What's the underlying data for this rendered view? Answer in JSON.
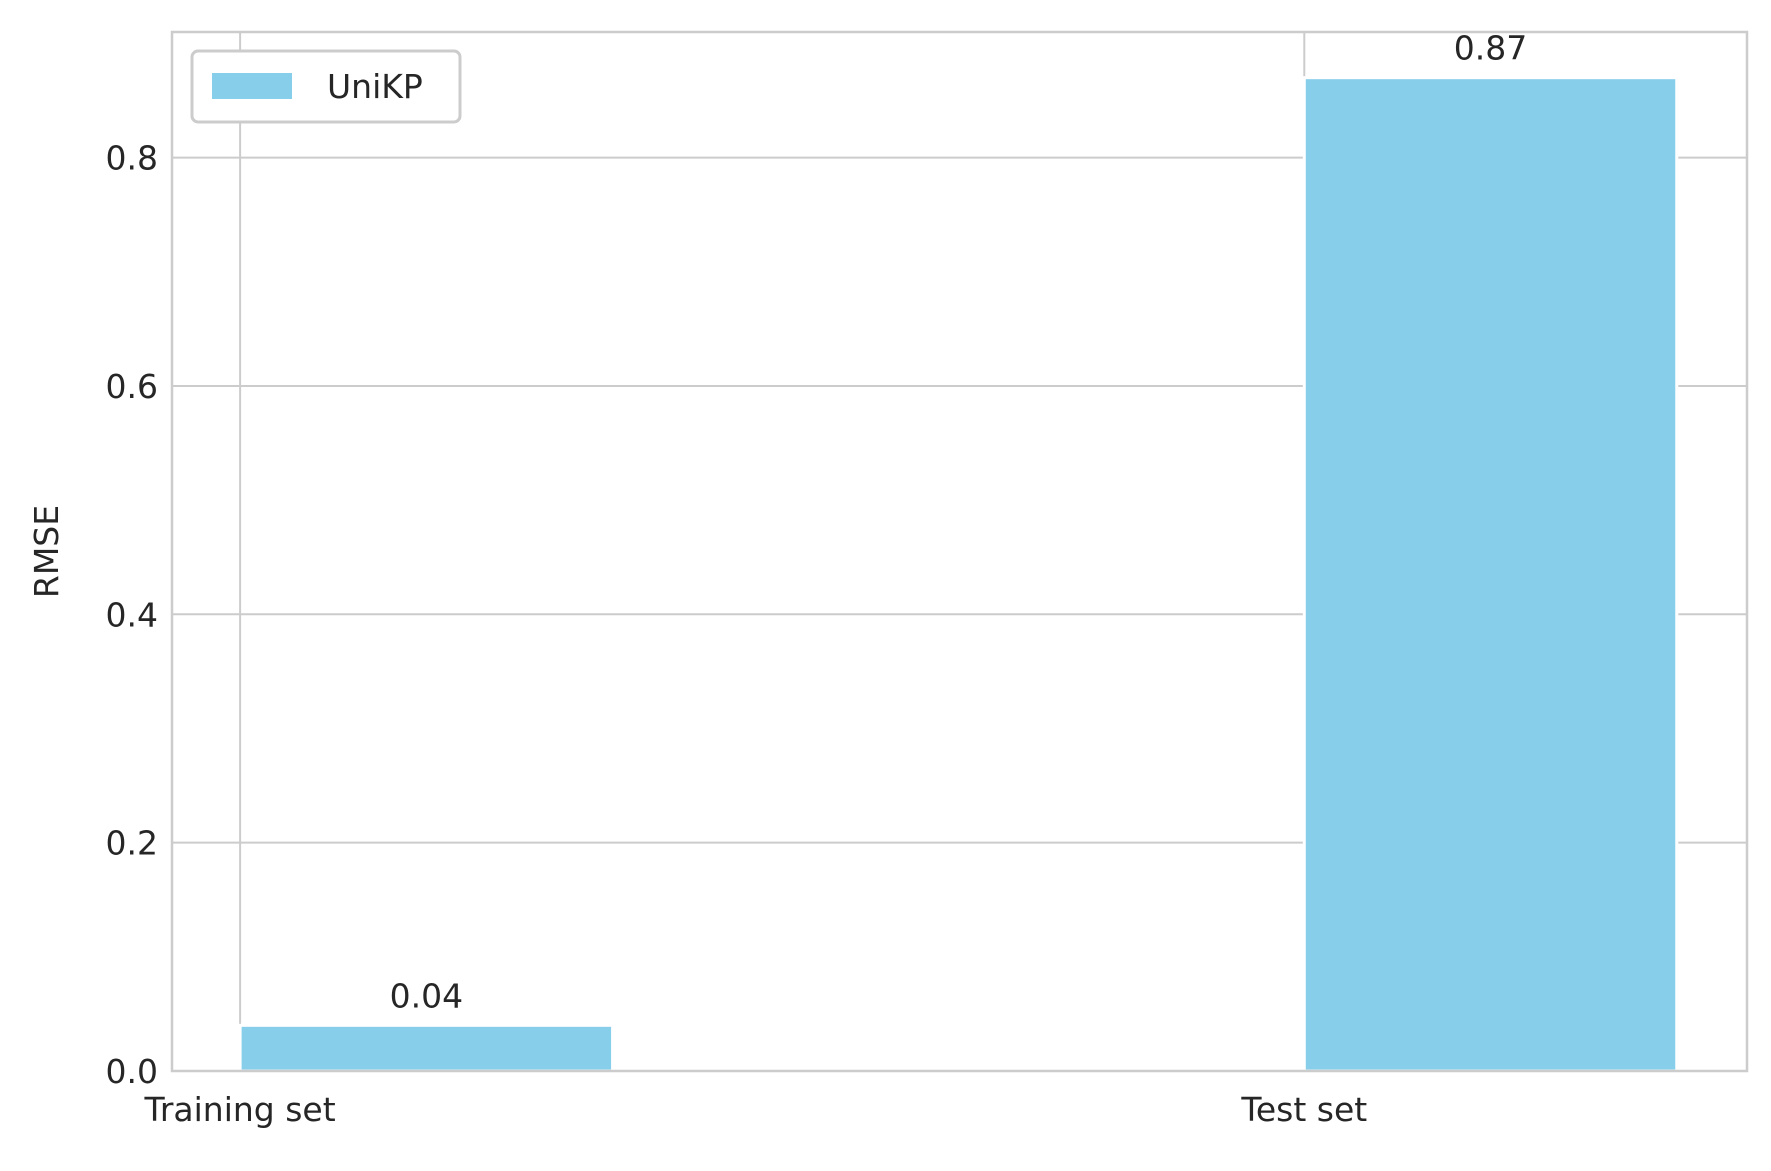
{
  "chart_data": {
    "type": "bar",
    "categories": [
      "Training set",
      "Test set"
    ],
    "series": [
      {
        "name": "UniKP",
        "values": [
          0.04,
          0.87
        ]
      }
    ],
    "data_labels": [
      "0.04",
      "0.87"
    ],
    "title": "",
    "xlabel": "",
    "ylabel": "RMSE",
    "ylim": [
      0,
      0.91
    ],
    "yticks": [
      0.0,
      0.2,
      0.4,
      0.6,
      0.8
    ],
    "ytick_labels": [
      "0.0",
      "0.2",
      "0.4",
      "0.6",
      "0.8"
    ],
    "grid": true,
    "legend_position": "top-left",
    "colors": {
      "bar": "#87CEEB",
      "grid": "#cccccc",
      "axes_edge": "#cccccc",
      "text": "#262626",
      "background": "#ffffff"
    }
  }
}
